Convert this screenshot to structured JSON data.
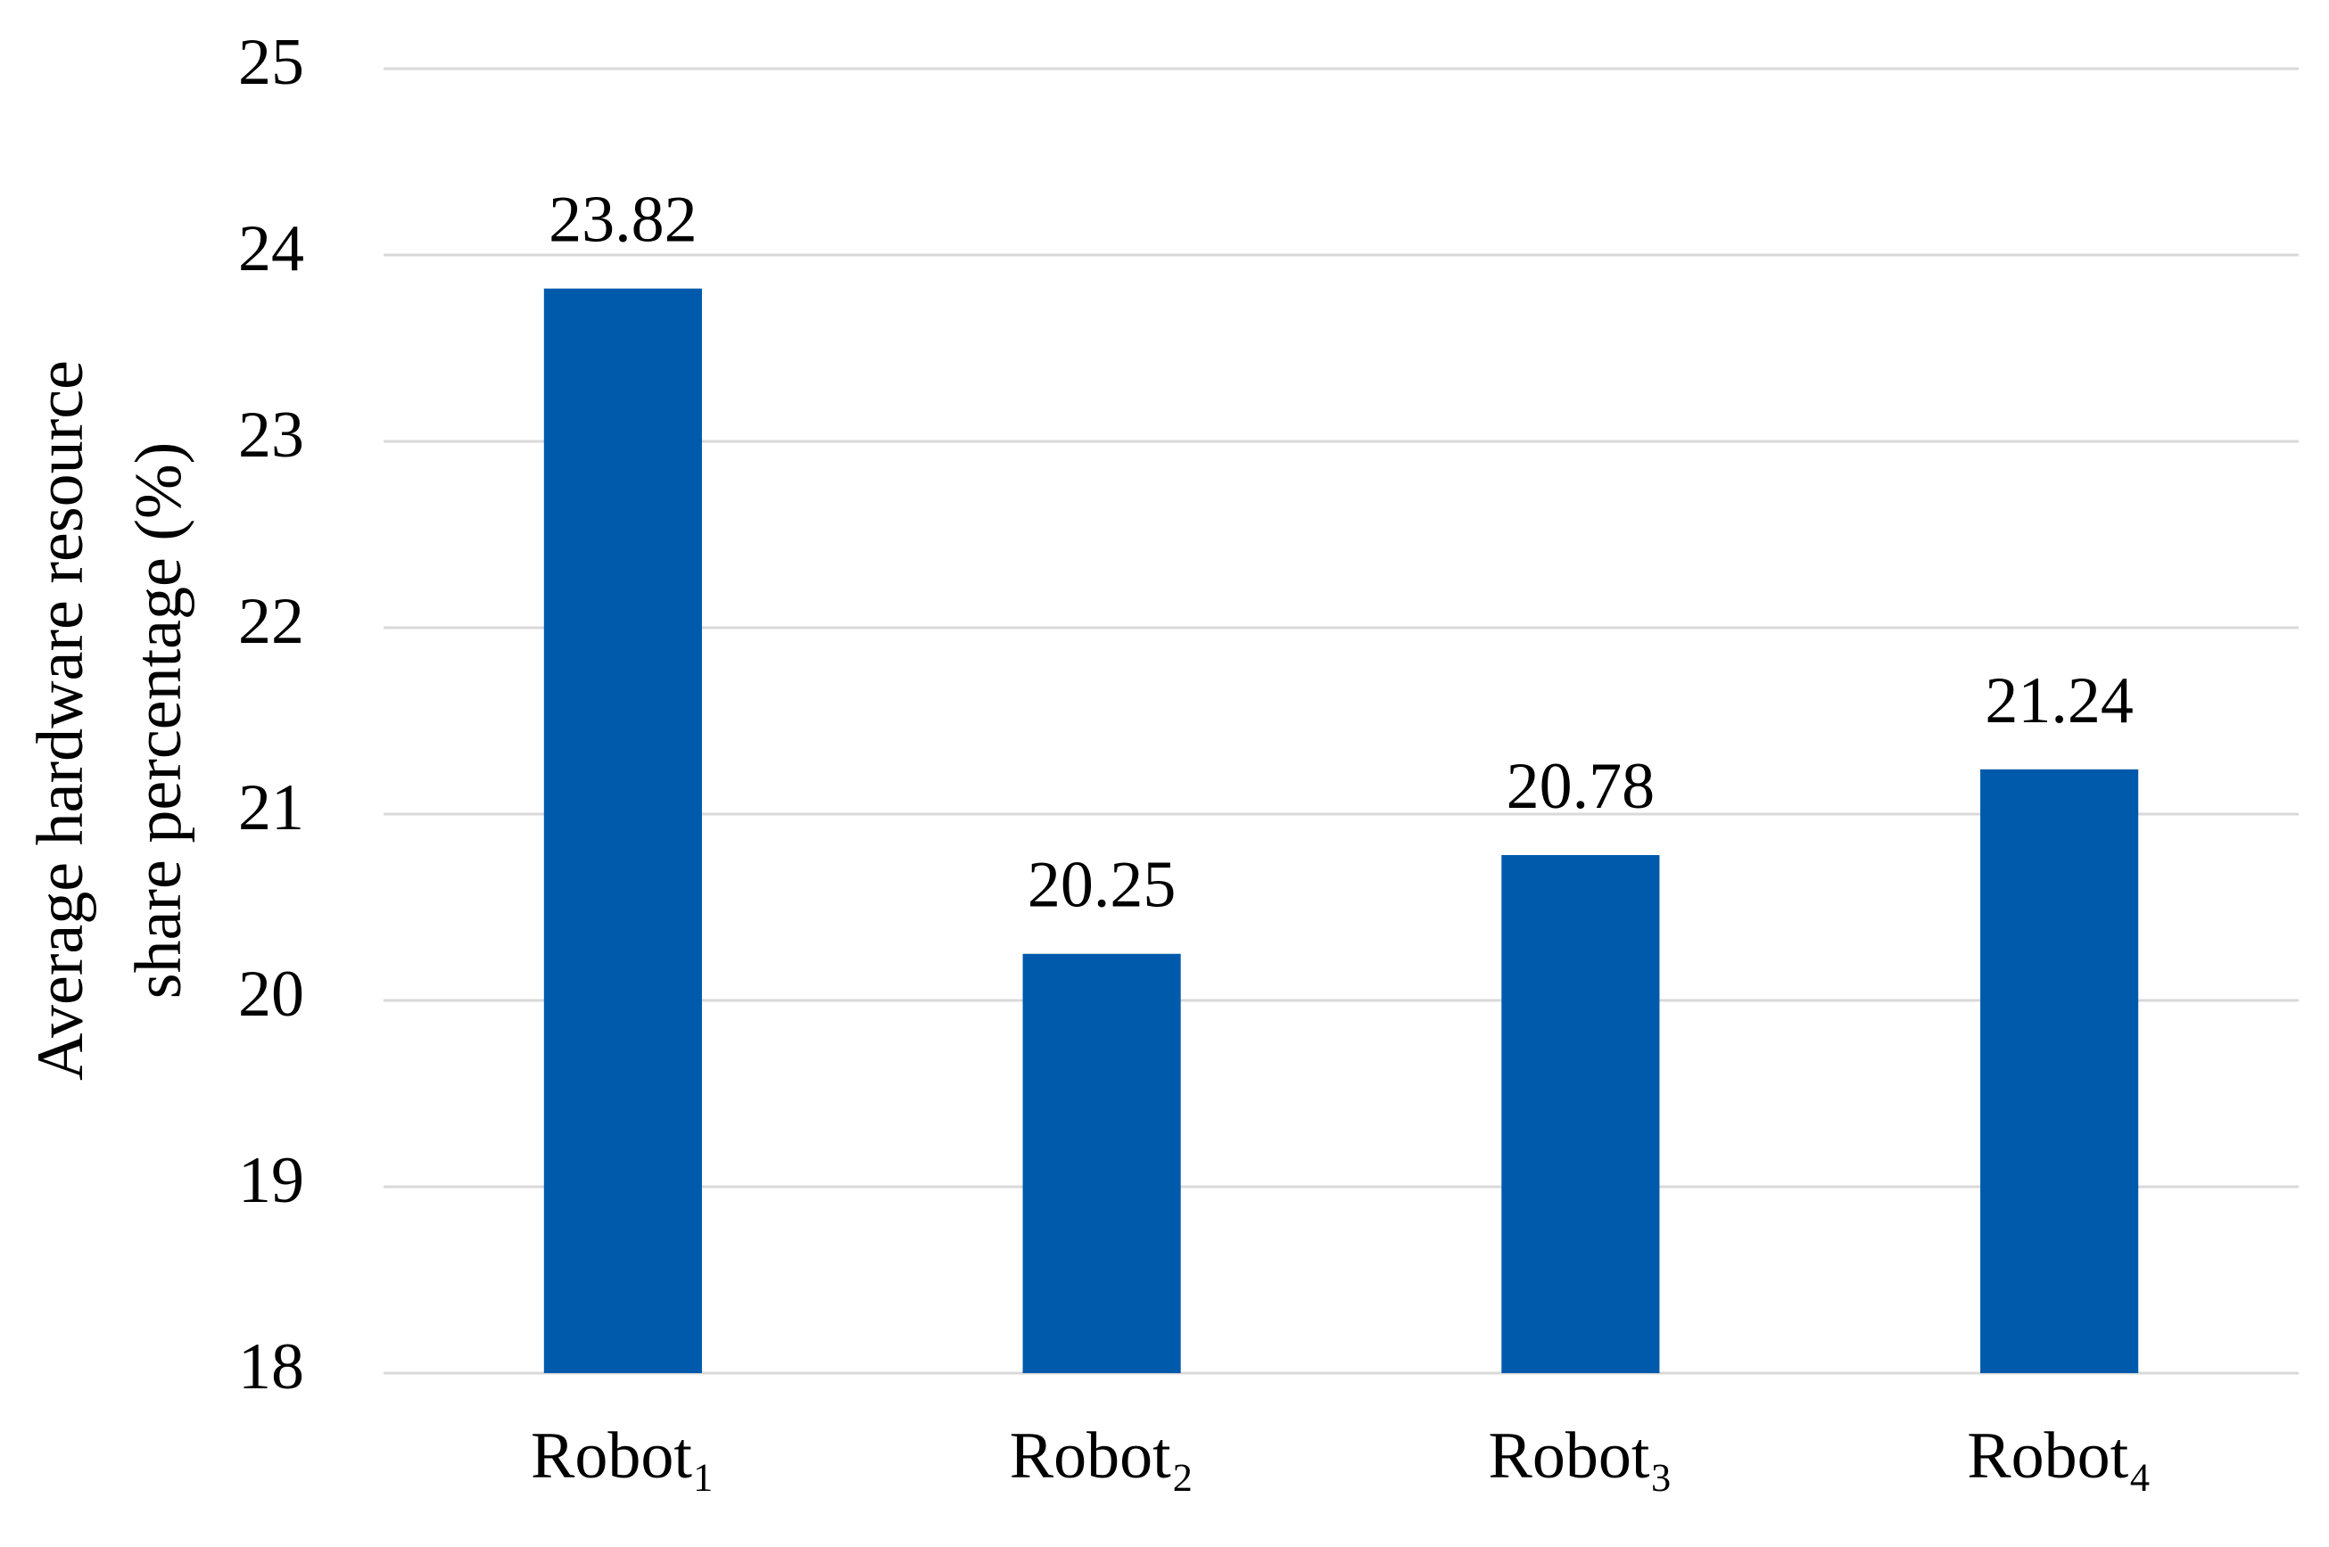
{
  "chart_data": {
    "type": "bar",
    "ylabel": [
      "Average hardware resource",
      "share percentage (%)"
    ],
    "categories": [
      "Robot₁",
      "Robot₂",
      "Robot₃",
      "Robot₄"
    ],
    "values": [
      23.82,
      20.25,
      20.78,
      21.24
    ],
    "color": "#005aab",
    "ylim": [
      18,
      25
    ],
    "yticks": [
      18,
      19,
      20,
      21,
      22,
      23,
      24,
      25
    ],
    "grid": true
  }
}
